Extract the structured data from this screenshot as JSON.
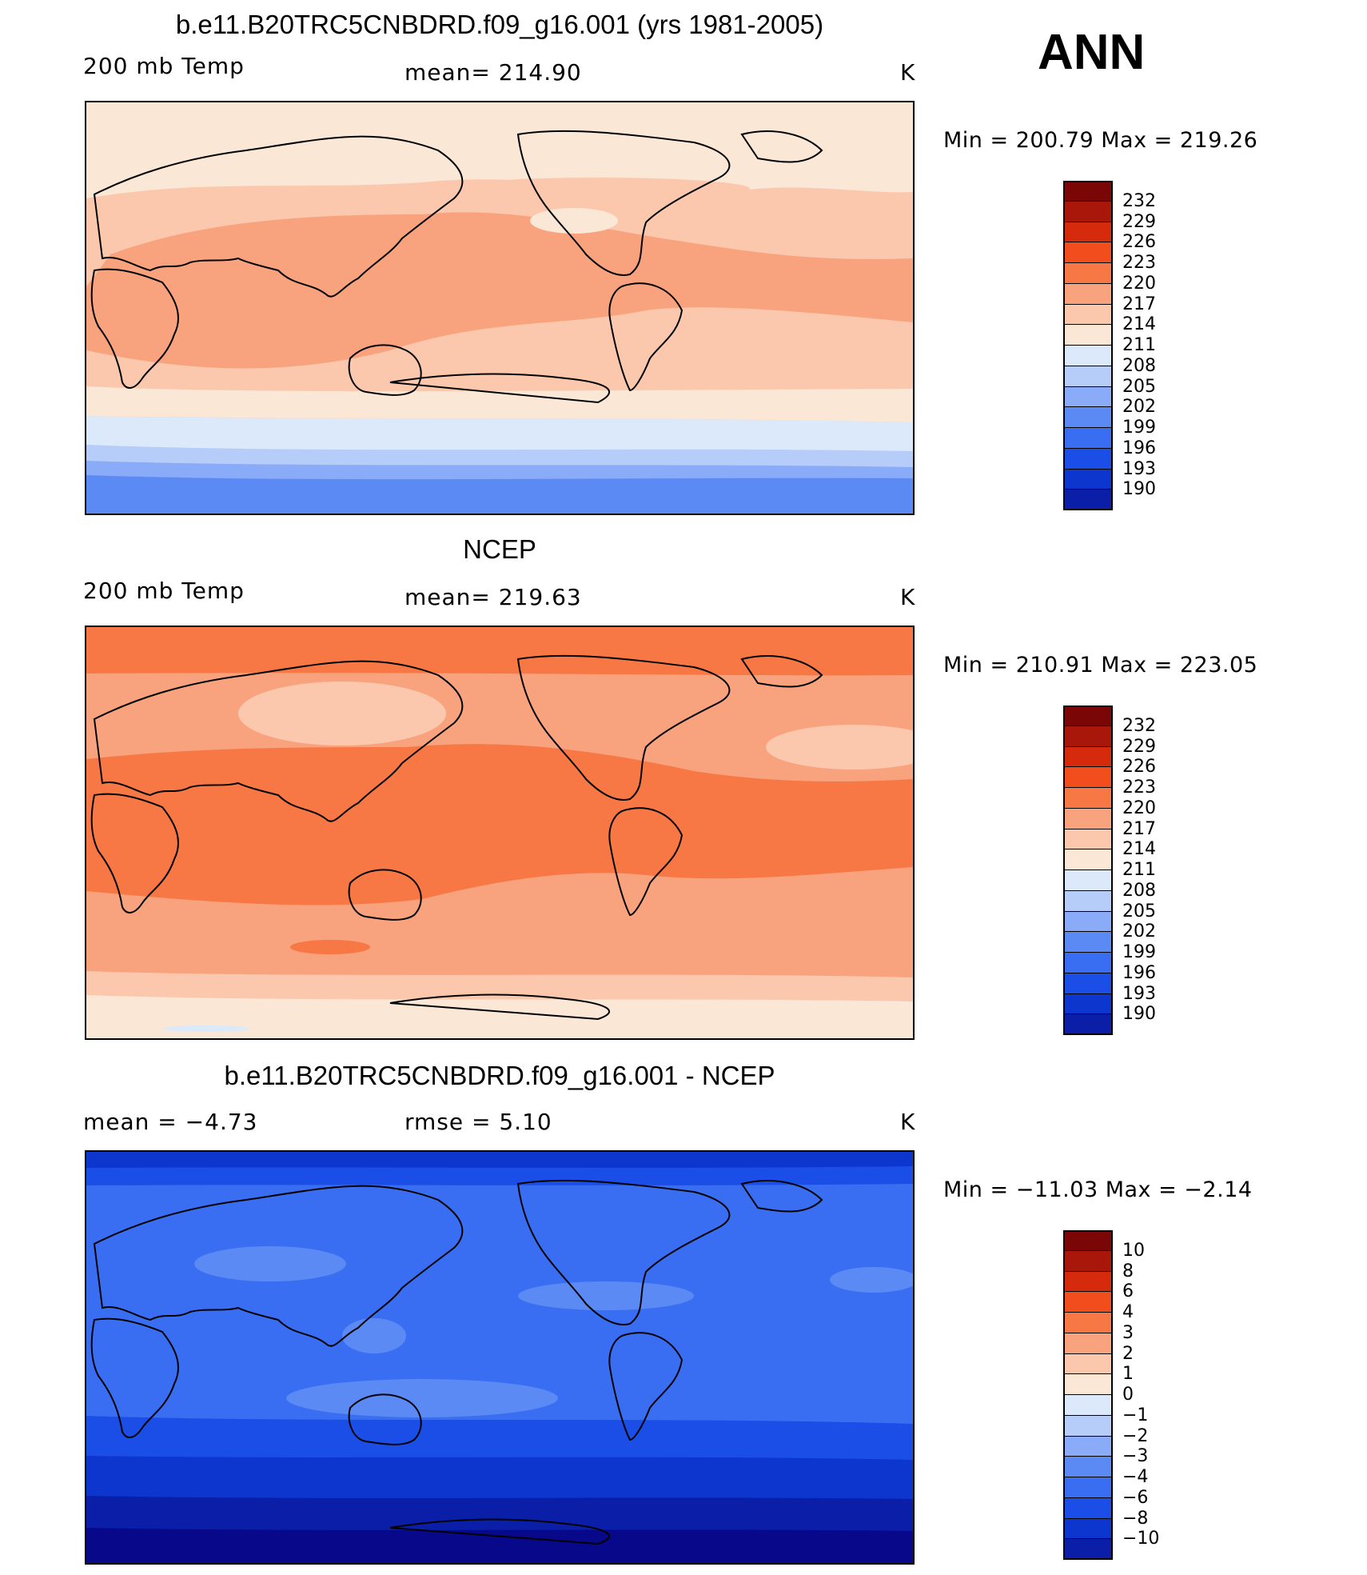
{
  "season": "ANN",
  "colors": {
    "abs": [
      "#08088a",
      "#0a1ea8",
      "#0d36cf",
      "#1b4ee6",
      "#3a6ef2",
      "#5b8af5",
      "#8aabf7",
      "#b6cdf9",
      "#dce9fb",
      "#fbe7d6",
      "#fbc8ad",
      "#f9a27e",
      "#f77745",
      "#f24d1d",
      "#d52a0c",
      "#a8170a",
      "#7a0705"
    ],
    "diff": [
      "#08088a",
      "#0a1ea8",
      "#0d36cf",
      "#1b4ee6",
      "#3a6ef2",
      "#5b8af5",
      "#8aabf7",
      "#b6cdf9",
      "#dce9fb",
      "#fbe7d6",
      "#fbc8ad",
      "#f9a27e",
      "#f77745",
      "#f24d1d",
      "#d52a0c",
      "#a8170a",
      "#7a0705"
    ]
  },
  "panels": [
    {
      "title": "b.e11.B20TRC5CNBDRD.f09_g16.001 (yrs 1981-2005)",
      "left_label": "200 mb Temp",
      "center_label": "mean=  214.90",
      "units": "K",
      "minmax": "Min  =  200.79  Max  =  219.26",
      "levels": [
        "232",
        "229",
        "226",
        "223",
        "220",
        "217",
        "214",
        "211",
        "208",
        "205",
        "202",
        "199",
        "196",
        "193",
        "190"
      ]
    },
    {
      "title": "NCEP",
      "left_label": "200 mb Temp",
      "center_label": "mean=  219.63",
      "units": "K",
      "minmax": "Min  =  210.91  Max  =  223.05",
      "levels": [
        "232",
        "229",
        "226",
        "223",
        "220",
        "217",
        "214",
        "211",
        "208",
        "205",
        "202",
        "199",
        "196",
        "193",
        "190"
      ]
    },
    {
      "title": "b.e11.B20TRC5CNBDRD.f09_g16.001 - NCEP",
      "left_label": "mean  =     −4.73",
      "center_label": "rmse  =       5.10",
      "units": "K",
      "minmax": "Min  =  −11.03  Max  =    −2.14",
      "levels": [
        "10",
        "8",
        "6",
        "4",
        "3",
        "2",
        "1",
        "0",
        "−1",
        "−2",
        "−3",
        "−4",
        "−6",
        "−8",
        "−10"
      ]
    }
  ],
  "chart_data": [
    {
      "type": "heatmap",
      "title": "b.e11.B20TRC5CNBDRD.f09_g16.001 (yrs 1981-2005)",
      "variable": "200 mb Temp",
      "units": "K",
      "mean": 214.9,
      "min": 200.79,
      "max": 219.26,
      "contour_levels": [
        190,
        193,
        196,
        199,
        202,
        205,
        208,
        211,
        214,
        217,
        220,
        223,
        226,
        229,
        232
      ],
      "zonal_profile": [
        {
          "lat": 90,
          "value": 214
        },
        {
          "lat": 60,
          "value": 213
        },
        {
          "lat": 40,
          "value": 215
        },
        {
          "lat": 20,
          "value": 217
        },
        {
          "lat": 0,
          "value": 217
        },
        {
          "lat": -20,
          "value": 217
        },
        {
          "lat": -40,
          "value": 213
        },
        {
          "lat": -55,
          "value": 210
        },
        {
          "lat": -65,
          "value": 205
        },
        {
          "lat": -90,
          "value": 201
        }
      ]
    },
    {
      "type": "heatmap",
      "title": "NCEP",
      "variable": "200 mb Temp",
      "units": "K",
      "mean": 219.63,
      "min": 210.91,
      "max": 223.05,
      "contour_levels": [
        190,
        193,
        196,
        199,
        202,
        205,
        208,
        211,
        214,
        217,
        220,
        223,
        226,
        229,
        232
      ],
      "zonal_profile": [
        {
          "lat": 90,
          "value": 220
        },
        {
          "lat": 60,
          "value": 219
        },
        {
          "lat": 40,
          "value": 218
        },
        {
          "lat": 20,
          "value": 221
        },
        {
          "lat": 0,
          "value": 221
        },
        {
          "lat": -20,
          "value": 221
        },
        {
          "lat": -40,
          "value": 219
        },
        {
          "lat": -60,
          "value": 217
        },
        {
          "lat": -75,
          "value": 214
        },
        {
          "lat": -90,
          "value": 212
        }
      ]
    },
    {
      "type": "heatmap",
      "title": "b.e11.B20TRC5CNBDRD.f09_g16.001 - NCEP",
      "units": "K",
      "mean": -4.73,
      "rmse": 5.1,
      "min": -11.03,
      "max": -2.14,
      "contour_levels": [
        -10,
        -8,
        -6,
        -4,
        -3,
        -2,
        -1,
        0,
        1,
        2,
        3,
        4,
        6,
        8,
        10
      ],
      "zonal_profile": [
        {
          "lat": 90,
          "value": -7
        },
        {
          "lat": 60,
          "value": -5
        },
        {
          "lat": 30,
          "value": -3.5
        },
        {
          "lat": 0,
          "value": -3.5
        },
        {
          "lat": -20,
          "value": -3
        },
        {
          "lat": -40,
          "value": -5
        },
        {
          "lat": -60,
          "value": -7
        },
        {
          "lat": -75,
          "value": -9
        },
        {
          "lat": -90,
          "value": -11
        }
      ]
    }
  ]
}
